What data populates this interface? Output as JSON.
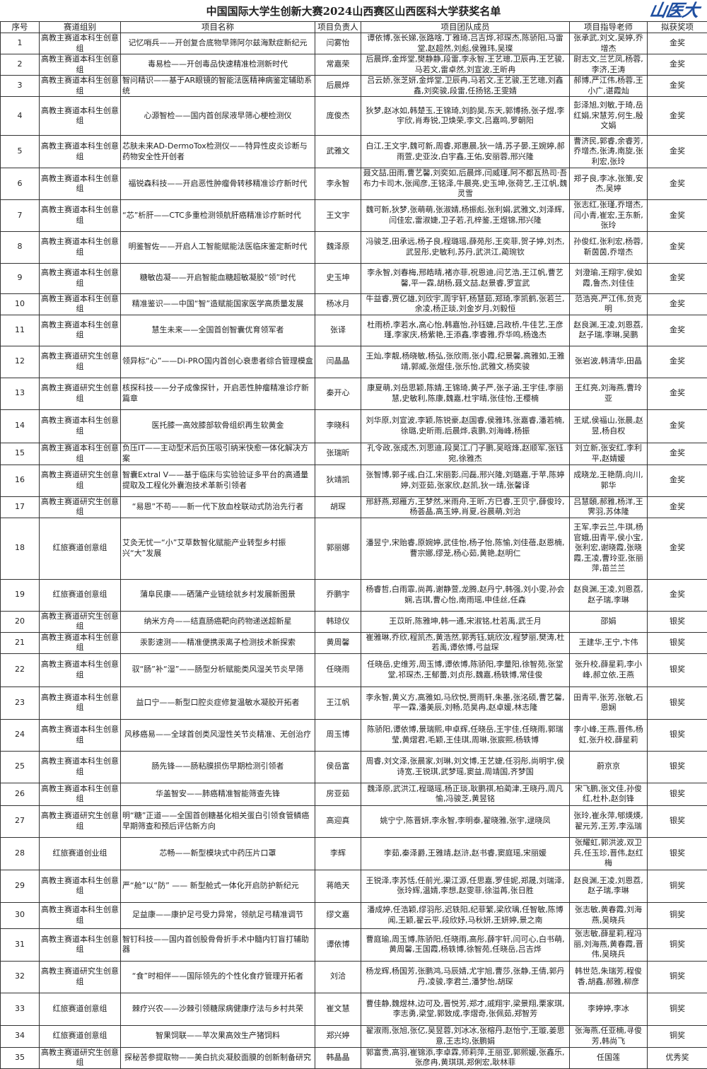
{
  "title": "中国国际大学生创新大赛2024山西赛区山西医科大学获奖名单",
  "columns": [
    "序号",
    "赛道组别",
    "项目名称",
    "项目负责人",
    "项目团队成员",
    "项目指导老师",
    "拟获奖项"
  ],
  "rows": [
    [
      "1",
      "高教主赛道本科生创意组",
      "记忆哨兵——开创复合底物早筛阿尔兹海默症新纪元",
      "闫雾怡",
      "谭依博,张长娣,张路啥,丁雅琦,吕吉烨,祁琛杰,陈骄阳,马雷堂,赵超然,刘彪,侯雅玮,吴璨",
      "张承武,刘文,吴婷,乔增杰",
      "金奖"
    ],
    [
      "2",
      "高教主赛道本科生创意组",
      "毒易检——开创毒品快速精准检测新时代",
      "常嘉荣",
      "后晨烨,金烨堂,樊静静,段雷,李永智,王艺璁,卫辰冉,王艺骏,马若文,雷卓然,刘宣波,王昕冉",
      "尉志文,兰艺凤,杨蓉,李济,王涛",
      "金奖"
    ],
    [
      "3",
      "高教主赛道本科生创意组",
      "智问精识——基于AR眼镜的智能法医精神病鉴定辅助系统",
      "后晨烨",
      "吕云娇,张芝妍,金烨堂,卫辰冉,马若文,王艺骏,王艺璁,刘鑫鑫,刘奕骏,段雷,任扬铭,王雯婧",
      "郝博,严江伟,杨蓉,王小广,谌霞灿",
      "金奖"
    ],
    [
      "4",
      "高教主赛道本科生创意组",
      "心源智检——国内首创尿液早筛心梗检测仪",
      "庞俊杰",
      "狄梦,赵冰如,韩楚玉,王锦琦,刘韵昊,东天,郭博扬,张子煜,李宇欣,肖寿锐,卫焕荣,李文,吕嘉鸣,罗朝阳",
      "彭泽旭,刘敏,于琦,岳红娟,宋慧芳,何生,殷文娟",
      "金奖"
    ],
    [
      "5",
      "高教主赛道本科生创意组",
      "芯肤未来AD-DermoTox检测仪——特异性皮炎诊断与药物安全性开创者",
      "武雅文",
      "白江,王文宇,魏可新,周睿,郑惠晨,狄一靖,苏子晏,王婉婷,郝雨萱,史亚汝,白宇鑫,王佑,安丽蓉,邢兴隆",
      "曹济民,郭睿,余睿芳,乔增杰,张涛,南旋,张利宏,张玲",
      "金奖"
    ],
    [
      "6",
      "高教主赛道本科生创意组",
      "福锐森科技——开启恶性肿瘤骨转移精准诊疗新时代",
      "李永智",
      "聂文喆,田雨,曹艺馨,刘奕如,后晨烨,闫威瑾,阿不都瓦热司·吾布力卡司木,张闻彦,王铭泽,牛晨亮,史玉坤,张荷艺,王江帆,魏灵雪",
      "郑子良,李冰,张策,安杰,吴婷",
      "金奖"
    ],
    [
      "7",
      "高教主赛道本科生创意组",
      "“芯”析肝——CTC多重检测领航肝癌精准诊疗新时代",
      "王文宇",
      "魏可新,狄梦,张萌萌,张淑婧,杨振彪,张利娟,武雅文,刘泽辉,闫佳宏,雷淑婕,卫子若,孔梓鉴,王煜锦,邢兴隆",
      "张志红,张瑾,乔增杰,闫小青,崔宏,王东新,张玲",
      "金奖"
    ],
    [
      "8",
      "高教主赛道本科生创意组",
      "明鉴智佐——开启人工智能赋能法医临床鉴定新时代",
      "魏泽原",
      "冯骏芝,田承远,杨子良,程璐瑶,薛苑彤,王奕菲,贺子婷,刘杰,武昱彤,史敏利,苏丹,武洪江,蔺琬钦",
      "孙俊红,张利宏,杨蓉,靳茵茵,乔增杰",
      "金奖"
    ],
    [
      "9",
      "高教主赛道本科生创意组",
      "糖敏齿凝——开启智能血糖超敏凝胶“领”时代",
      "史玉坤",
      "李永智,刘春梅,邢皓晴,褚亦菲,祝恩迪,闫艺浩,王江帆,曹艺馨,平一霖,胡杨,聂文喆,赵景睿,罗宣武",
      "刘澄瑜,王翔宇,侯如霞,鲁杰,刘佳佳",
      "金奖"
    ],
    [
      "10",
      "高教主赛道本科生创意组",
      "精准鉴识——中国“智”造赋能国家医学高质量发展",
      "杨冰月",
      "牛益睿,贾亿雄,刘欣宇,周宇轩,杨慧茹,郑琦,李凯鹤,张若兰,余凌,杨正琰,刘金岁月,刘毅恒",
      "范浩亮,严江伟,贠克明",
      "金奖"
    ],
    [
      "11",
      "高教主赛道本科生创意组",
      "慧生未来——全国首创智囊优育领军者",
      "张译",
      "杜雨桥,李若水,高心怡,韩嘉怡,孙钰婕,吕政桥,牛佳艺,王彦瑾,李家庆,杨紫艳,王添鑫,李睿雅,乔华鸣,杨逸杰",
      "赵良渊,王凌,刘恩荔,赵子瑞,李琳,吴鹏",
      "金奖"
    ],
    [
      "12",
      "高教主赛道研究生创意组",
      "领异标“心”——Di-PRO国内首创心衰患者综合管理模盒",
      "闫晶晶",
      "王灿,李靓,杨晓敏,杨弘,张欣雨,张小霞,纪景馨,高雅如,王雅靖,郭威,张煜佳,张乐怡,武雅文,杨奕骏",
      "张岩波,韩清华,田晶",
      "金奖"
    ],
    [
      "13",
      "高教主赛道研究生创意组",
      "核探科技——分子成像探针，开启恶性肿瘤精准诊疗新篇章",
      "秦开心",
      "康夏萌,刘岳思颖,陈婧,王锦琦,黄子严,张子涵,王宇佳,李丽慧,史敏利,陈康,魏嘉,杜宇晴,张佳怡,王樱楠",
      "王红亮,刘海燕,曹玲亚",
      "金奖"
    ],
    [
      "14",
      "高教主赛道本科生创意组",
      "医托膝一高效膝部软骨组织再生软黄金",
      "李晓科",
      "刘华原,刘宣波,李颖,陈锐豪,赵国睿,侯雅玮,张嘉睿,潘若楠,徐璐,史昕雨,后晨烨,袁鹏,刘海峰,杨振",
      "王斌,侯福山,张晨,赵昱,杨自权",
      "金奖"
    ],
    [
      "15",
      "高教主赛道本科生创意组",
      "负压IT——主动型术后负压吸引纳米快愈一体化解决方案",
      "张瑞昕",
      "孔令政,张成杰,刘思迪,段昊江,门子鹏,吴晗烽,赵顺军,张钰宛,徐雅杰",
      "刘立新,张安红,李利平,赵婧媛",
      "金奖"
    ],
    [
      "16",
      "高教主赛道研究生创意组",
      "智囊Extral V——基于临床与实验验证多平台的高通量提取及工程化外囊泡技术革新引领者",
      "狄靖凯",
      "张智博,郭子彧,白江,宋丽影,闫磊,邢兴隆,刘璐嘉,于苹,陈婷婷,刘亚茹,张家欣,赵凯,狄一靖,张馨译",
      "成晓龙,王艳荫,向川,郭华",
      "金奖"
    ],
    [
      "17",
      "高教主赛道研究生创意组",
      "“易恩”不苟——新一代下放血栓联动式防治先行者",
      "胡琛",
      "邢舒燕,郑雁方,王梦然,米雨舟,王昕,方巳睿,王贝宁,薛俊玲,杨荟晶,高玉婷,肖夏,谷晨萌,刘治",
      "吕慧頣,郝雅,杨洋,王霁羽,苏体隆",
      "金奖"
    ],
    [
      "18",
      "红旅赛道创意组",
      "艾灸无忧一“小”艾草数智化赋能产业转型乡村振兴“大”发展",
      "郭丽娜",
      "潘昱宁,宋贻睿,原婉婷,武佳怡,杨子怡,陈愉,刘佳蓓,赵恩楠,曹宗娜,缪茏,杨心茹,黄艳,赵明仁",
      "王军,李云兰,牛琪,杨官娥,田青平,侯小宝,张利宏,谢晓霞,张晓霞,王凌,曹玲亚,张丽萍,苗兰兰",
      "金奖"
    ],
    [
      "19",
      "红旅赛道创意组",
      "蒲阜民康——硒蒲产业链绘就乡村发展新图景",
      "乔鹏宇",
      "杨睿哲,白雨霏,尚苒,谢静萱,龙腾,赵丹宁,韩强,刘小雯,孙会娴,吉琪,曹心怡,南雨瑶,申佳丝,任森",
      "赵良渊,王凌,刘恩荔,赵子瑞,李琳",
      "金奖"
    ],
    [
      "20",
      "高教主赛道研究生创意组",
      "纳米方舟——结直肠癌靶向药物递送超新星",
      "韩琼仪",
      "王苡昕,陈雅坤,韩一通,宋淑铭,杜若禹,武壬月",
      "邵娟",
      "银奖"
    ],
    [
      "21",
      "高教主赛道本科生创意组",
      "汞影速测——精准便携汞离子检测技术新探索",
      "黄周馨",
      "崔雅琳,乔欣,程凯杰,黄浩然,郭秀钰,姚欣汝,程梦丽,樊涛,杜若禹,谭依博,弓益琛",
      "王建华,王宁,卞伟",
      "银奖"
    ],
    [
      "22",
      "高教主赛道本科生创意组",
      "驭“肠”补“湿”——肠型分析赋能类风湿关节炎早筛",
      "任晓雨",
      "任晓岳,史维芳,周玉博,谭依博,陈骄阳,李量阳,徐智苑,张堂堂,祁琛杰,王郁蕾,刘贞彤,魏嘉,杨轶博,常佳俊",
      "张升校,薛星莉,李小峰,郝立依,王燕",
      "银奖"
    ],
    [
      "23",
      "高教主赛道本科生创意组",
      "益口宁——新型口腔炎症修复温敏水凝胶开拓者",
      "王江帆",
      "李永智,黄义方,高雅如,马欣悦,贾雨轩,朱墨,张洺硕,曹艺馨,平一霖,潘美辰,刘畅,范昊冉,赵卓媛,林志隆",
      "田青平,张芳,张敏,石恩娴",
      "银奖"
    ],
    [
      "24",
      "高教主赛道本科生创意组",
      "风移癌易——全球首创类风湿性关节炎精准、无创治疗",
      "周玉博",
      "陈骄阳,谭依博,景瑞熙,申卓辉,任晓岳,王宇佳,任晓雨,郭瑞莹,黄熠君,毛颖,王佳琪,周琳,张宸熙,杨轶博",
      "李小峰,王燕,晋伟,杨虹,张升校,薛星莉",
      "银奖"
    ],
    [
      "25",
      "高教主赛道本科生创意组",
      "肠先锋——肠粘膜损伤早期检测引领者",
      "侯岳富",
      "周睿,刘文泽,张晨家,刘琳,刘文博,王艺婕,任羽彤,尚明宇,侯诗宽,王锐琪,武梦瑶,窦益,周靖国,齐梦国",
      "蔚京京",
      "银奖"
    ],
    [
      "26",
      "高教主赛道本科生创意组",
      "华盖智安——肺癌精准智能筛查先锋",
      "房亚茹",
      "魏泽原,武洪江,程璐瑶,杨正琰,耿鹏祺,柏蔺津,王晓丹,周凡愉,冯骏芝,黄昱铭",
      "宋飞鹏,张文佳,孙俊红,杜朴,赵剑锋",
      "银奖"
    ],
    [
      "27",
      "高教主赛道研究生创意组",
      "明“糖”正道——全国首创糖基化相关蛋白引领食管鳞癌早期筛查和预后评估新方向",
      "高迎真",
      "姚宁宁,陈晋妍,李永智,李明泰,翟晓雅,张宇,逯晓凤",
      "张玲,崔永萍,郇煐煐,翟元芳,王芳,李泓瑞",
      "银奖"
    ],
    [
      "28",
      "红旅赛道创业组",
      "芯畅——新型模块式中药压片口罩",
      "李辉",
      "李茹,秦泽爵,王雅靖,赵浒,赵书睿,窦庭瑶,宋丽媛",
      "张耀虹,郭洪波,双卫兵,任玉珍,晋伟,赵红梅",
      "银奖"
    ],
    [
      "29",
      "高教主赛道本科生创意组",
      "严“舱”以“防” —— 新型舱式一体化开启防护新纪元",
      "蒋皓天",
      "王锐泽,李苏恬,任前光,渠江源,任思嘉,罗佳妮,郑晟,刘瑞泽,张玲辉,温婧,李想,赵雯菲,徐溢苒,张日胜",
      "赵良渊,王凌,刘恩荔,赵子瑞,李琳",
      "铜奖"
    ],
    [
      "30",
      "高教主赛道本科生创意组",
      "足益康——康护足弓受力异常，领航足弓精准调节",
      "缪文嘉",
      "潘成婷,任浩颖,缪羽彤,迟轶阳,纪菲繁,梁欣瑀,任智敏,陈博闻,王颖,翟云平,段欣妤,马秋妍,王妍婷,景之南",
      "张志敏,黄春霞,刘海燕,吴晓兵",
      "铜奖"
    ],
    [
      "31",
      "高教主赛道本科生创意组",
      "智钉科技——国内首创股骨骨折手术中髓内钉盲打辅助器",
      "谭依博",
      "曹庭瑜,周玉博,陈骄阳,任晓雨,高彤,薛宇轩,闫可心,白书萌,黄周馨,王国霞,杨轶博,徐智苑,任晓岳,吕吉烨",
      "张志敏,薛星莉,程冯丽,刘海燕,黄春霞,晋伟,吴晓兵",
      "铜奖"
    ],
    [
      "32",
      "高教主赛道研究生创意组",
      "“食”时相伴——国际领先的个性化食疗管理开拓者",
      "刘洽",
      "杨龙辉,杨国芳,张鹏鸿,马辰婧,尤宇旭,曹莎,张静,王倩,郭丹丹,凌骏,李君兰,潘梦怡,胡琛",
      "韩世范,朱瑞芳,程俊香,胡鑫,郝雅,柳彦",
      "铜奖"
    ],
    [
      "33",
      "红旅赛道创意组",
      "棘疗兴农——沙棘引领糖尿病健康疗法与乡村共荣",
      "崔文慧",
      "曹佳静,魏煜林,边可及,晋悦芳,郑才,戚翔宇,梁景翔,栗家琪,李志勇,梁堂,郭致成,李熠奇,张佩茹,郑智芳",
      "李婷婷,李冰",
      "铜奖"
    ],
    [
      "34",
      "红旅赛道创意组",
      "智果饲联——苹次果高效生产猪饲料",
      "郑兴婷",
      "翟淑雨,张旭,张亿,吴昱蓉,刘冰冰,张榕丹,赵怡宁,王璇,姜思意,王志均,张鹏娟",
      "张海燕,任亚楠,寻俊芳,韩尚飞",
      "铜奖"
    ],
    [
      "35",
      "高教主赛道研究生创意组",
      "探秘苦参提取物——美白抗炎凝胶面膜的创新制备研究",
      "韩晶晶",
      "郭富贵,高羽,崔锦添,李卓霖,师莉萍,王丽亚,郭熙媛,张鑫乐,张彦冉,黄琪琪,郑俐宏,耿林菲",
      "任国莲",
      "优秀奖"
    ]
  ],
  "logo": {
    "text": "山医大",
    "color": "#1f4fa0"
  }
}
